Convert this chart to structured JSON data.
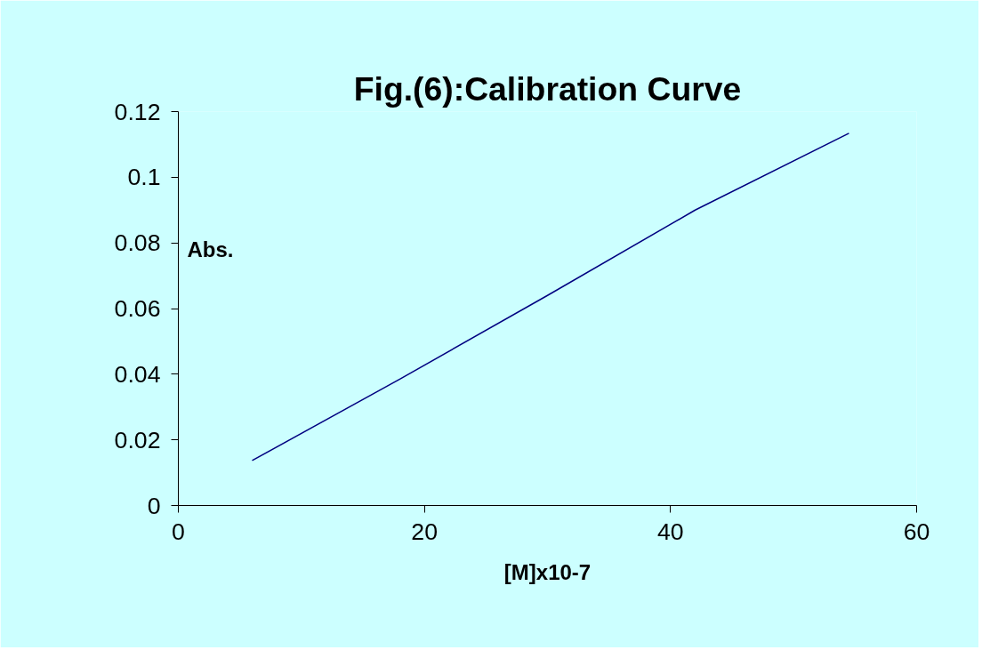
{
  "chart_data": {
    "type": "line",
    "title": "Fig.(6):Calibration Curve",
    "xlabel": "[M]x10-7",
    "ylabel": "Abs.",
    "x": [
      6,
      18,
      30,
      42,
      54.5
    ],
    "series": [
      {
        "color": "#000080",
        "values": [
          0.0137,
          0.0385,
          0.064,
          0.09,
          0.1134
        ]
      }
    ],
    "xlim": [
      0,
      60
    ],
    "xticks": [
      0,
      20,
      40,
      60
    ],
    "ylim": [
      0,
      0.12
    ],
    "yticks": [
      0,
      0.02,
      0.04,
      0.06,
      0.08,
      {
        "value": 0.1,
        "label": "0.1"
      },
      0.12
    ],
    "grid": false,
    "marker": "none",
    "line_style": "solid"
  }
}
